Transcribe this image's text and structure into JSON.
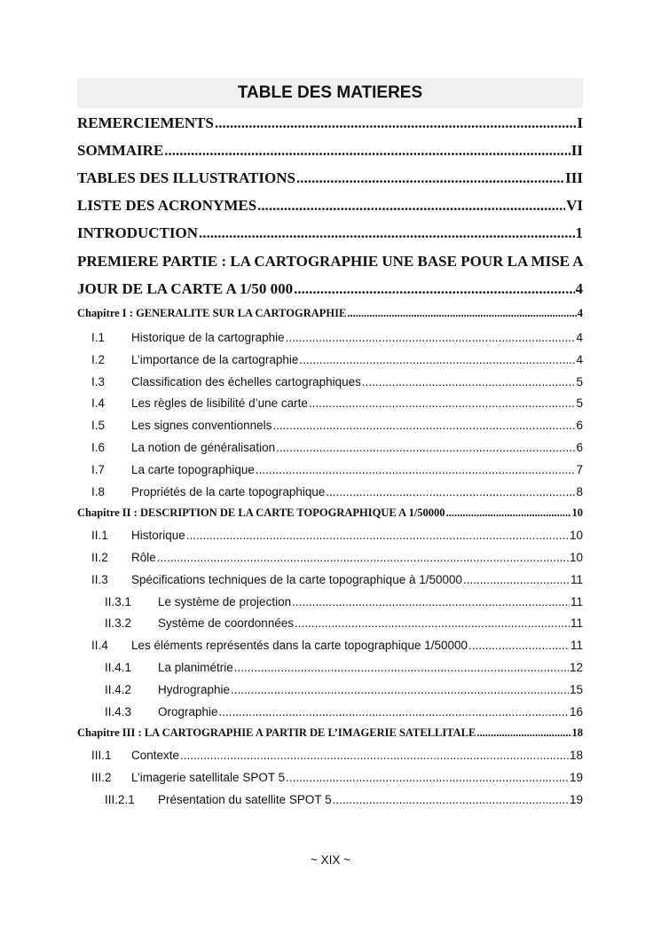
{
  "title": "TABLE DES MATIERES",
  "entries": [
    {
      "label": "REMERCIEMENTS",
      "page": "I"
    },
    {
      "label": "SOMMAIRE ",
      "page": "II"
    },
    {
      "label": "TABLES DES ILLUSTRATIONS ",
      "page": "III"
    },
    {
      "label": "LISTE DES ACRONYMES",
      "page": "VI"
    },
    {
      "label": "INTRODUCTION",
      "page": "1"
    },
    {
      "label": "PREMIERE PARTIE : LA CARTOGRAPHIE UNE BASE POUR LA MISE A"
    },
    {
      "label": "JOUR DE LA CARTE A 1/50 000 ",
      "page": "4"
    },
    {
      "label": "Chapitre I  : GENERALITE SUR LA CARTOGRAPHIE",
      "page": "4"
    },
    {
      "num": "I.1",
      "label": "Historique de la cartographie ",
      "page": "4"
    },
    {
      "num": "I.2",
      "label": "L’importance de la cartographie ",
      "page": "4"
    },
    {
      "num": "I.3",
      "label": "Classification des échelles cartographiques",
      "page": "5"
    },
    {
      "num": "I.4",
      "label": "Les règles de lisibilité d’une carte",
      "page": "5"
    },
    {
      "num": "I.5",
      "label": "Les signes conventionnels ",
      "page": "6"
    },
    {
      "num": "I.6",
      "label": "La notion de généralisation ",
      "page": "6"
    },
    {
      "num": "I.7",
      "label": "La carte topographique ",
      "page": "7"
    },
    {
      "num": "I.8",
      "label": "Propriétés de la carte topographique ",
      "page": "8"
    },
    {
      "label": "Chapitre II : DESCRIPTION DE LA CARTE TOPOGRAPHIQUE A 1/50000 ",
      "page": "10"
    },
    {
      "num": "II.1",
      "label": "Historique ",
      "page": "10"
    },
    {
      "num": "II.2",
      "label": "Rôle",
      "page": "10"
    },
    {
      "num": "II.3",
      "label": "Spécifications techniques de la carte topographique à 1/50000 ",
      "page": "11"
    },
    {
      "num": "II.3.1",
      "label": "Le système de projection ",
      "page": "11"
    },
    {
      "num": "II.3.2",
      "label": "Système de coordonnées",
      "page": "11"
    },
    {
      "num": "II.4",
      "label": "Les éléments représentés dans la carte topographique 1/50000",
      "page": "11"
    },
    {
      "num": "II.4.1",
      "label": "La planimétrie",
      "page": "12"
    },
    {
      "num": "II.4.2",
      "label": "Hydrographie",
      "page": "15"
    },
    {
      "num": "II.4.3",
      "label": "Orographie ",
      "page": "16"
    },
    {
      "label": "Chapitre III   : LA CARTOGRAPHIE A PARTIR DE L’IMAGERIE SATELLITALE ",
      "page": "18"
    },
    {
      "num": "III.1",
      "label": "Contexte",
      "page": "18"
    },
    {
      "num": "III.2",
      "label": "L’imagerie satellitale SPOT 5 ",
      "page": "19"
    },
    {
      "num": "III.2.1",
      "label": "Présentation du satellite SPOT 5 ",
      "page": "19"
    }
  ],
  "footer": "~ XIX ~"
}
